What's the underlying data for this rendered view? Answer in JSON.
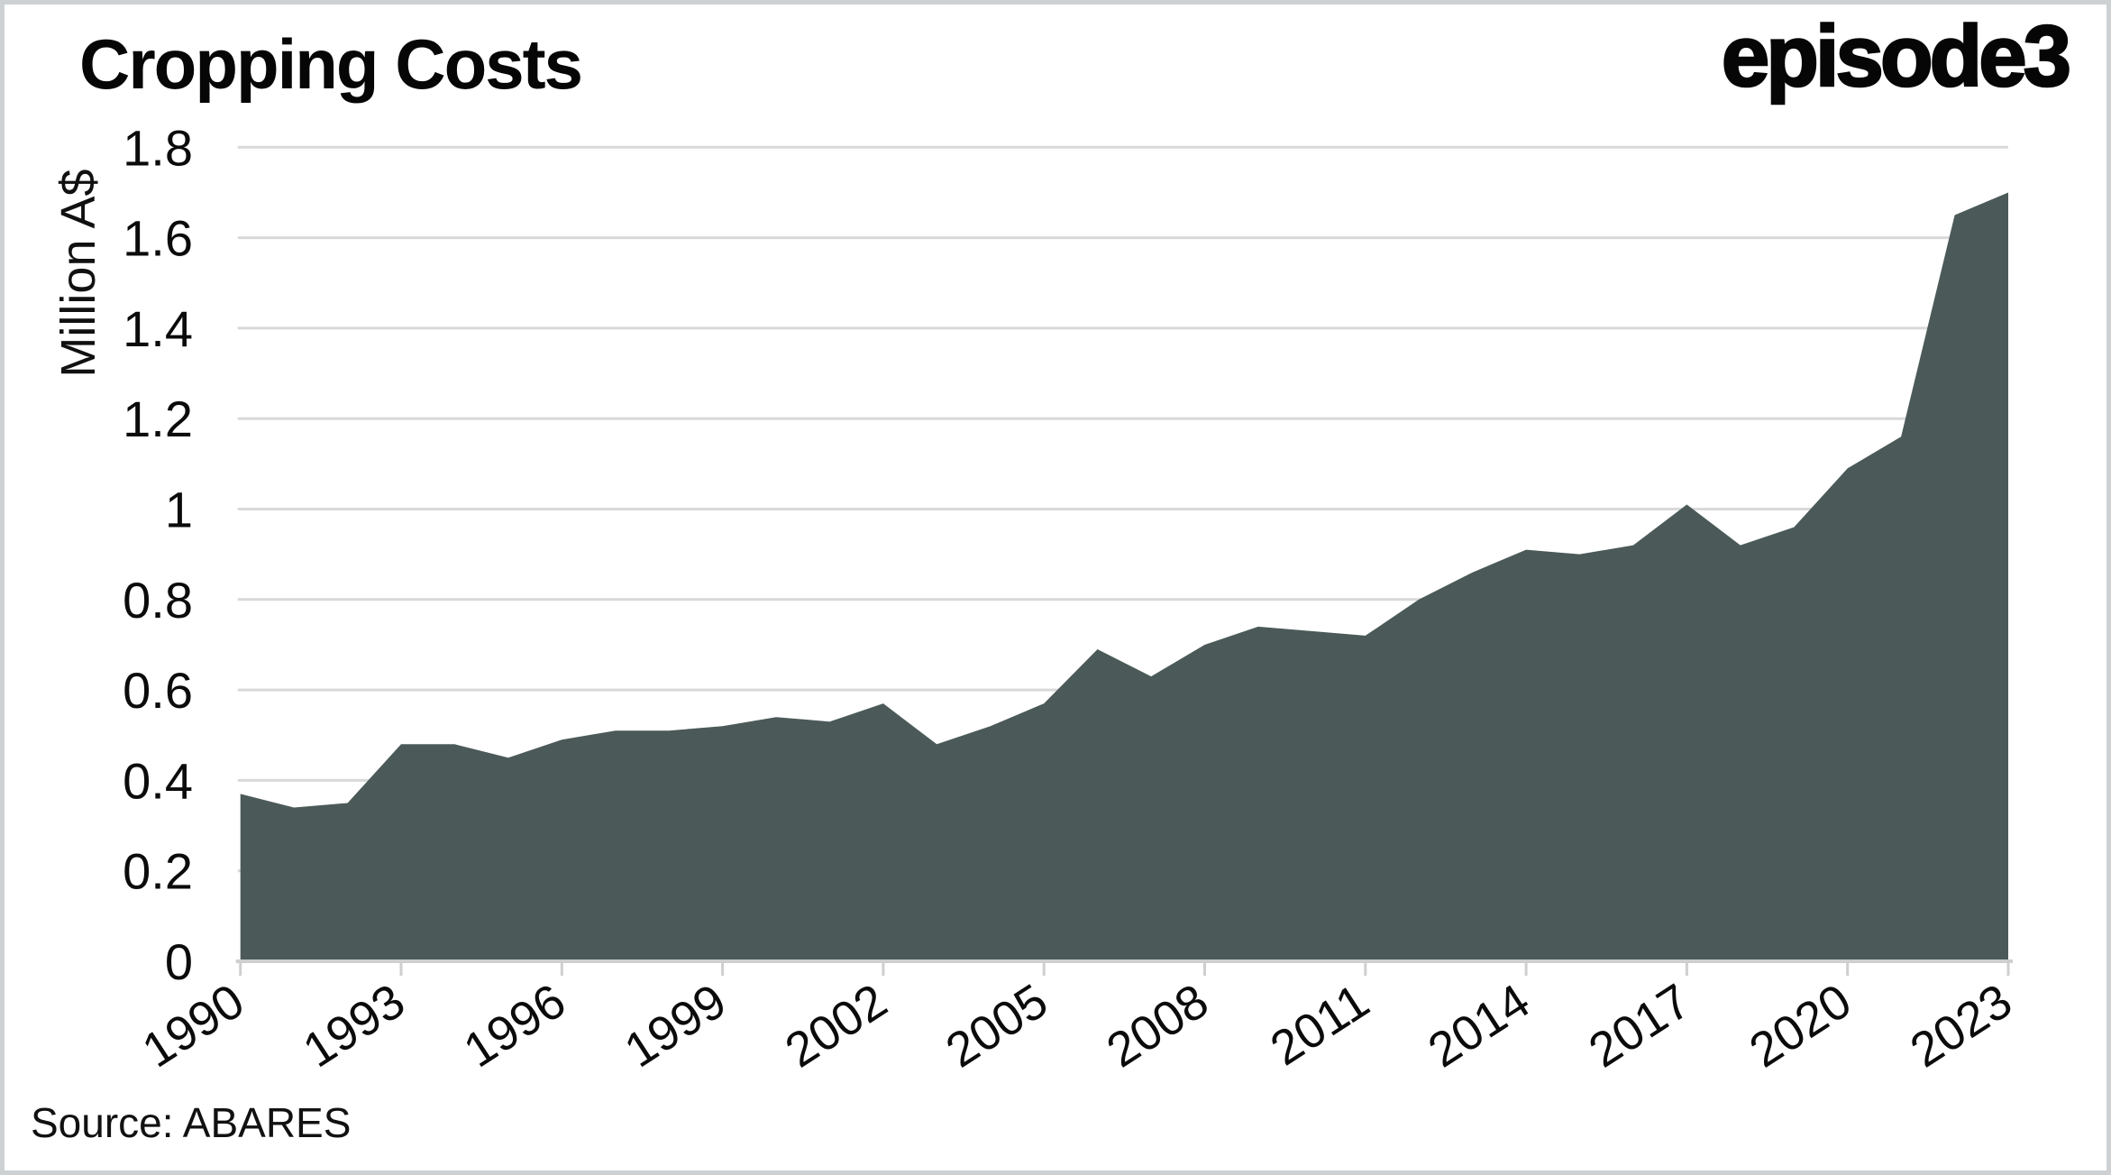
{
  "header": {
    "title": "Cropping Costs",
    "logo": "episode3"
  },
  "source": {
    "label": "Source: ABARES"
  },
  "chart_data": {
    "type": "area",
    "title": "Cropping Costs",
    "ylabel": "Million A$",
    "xlabel": "",
    "series_name": "Cropping costs",
    "years": [
      1990,
      1991,
      1992,
      1993,
      1994,
      1995,
      1996,
      1997,
      1998,
      1999,
      2000,
      2001,
      2002,
      2003,
      2004,
      2005,
      2006,
      2007,
      2008,
      2009,
      2010,
      2011,
      2012,
      2013,
      2014,
      2015,
      2016,
      2017,
      2018,
      2019,
      2020,
      2021,
      2022,
      2023
    ],
    "values": [
      0.37,
      0.34,
      0.35,
      0.48,
      0.48,
      0.45,
      0.49,
      0.51,
      0.51,
      0.52,
      0.54,
      0.53,
      0.57,
      0.48,
      0.52,
      0.57,
      0.69,
      0.63,
      0.7,
      0.74,
      0.73,
      0.72,
      0.8,
      0.86,
      0.91,
      0.9,
      0.92,
      1.01,
      0.92,
      0.96,
      1.09,
      1.16,
      1.65,
      1.7
    ],
    "ylim": [
      0,
      1.8
    ],
    "ytick_labels": [
      "0",
      "0.2",
      "0.4",
      "0.6",
      "0.8",
      "1",
      "1.2",
      "1.4",
      "1.6",
      "1.8"
    ],
    "xtick_years": [
      1990,
      1993,
      1996,
      1999,
      2002,
      2005,
      2008,
      2011,
      2014,
      2017,
      2020,
      2023
    ],
    "xtick_labels": [
      "1990",
      "1993",
      "1996",
      "1999",
      "2002",
      "2005",
      "2008",
      "2011",
      "2014",
      "2017",
      "2020",
      "2023"
    ],
    "grid": "horizontal",
    "legend": "none",
    "colors": {
      "area_fill": "#4b5a58",
      "gridline": "#d9d9d9",
      "axis_line": "#cfcfcf",
      "text": "#0b0b0b",
      "background": "#ffffff",
      "frame_border": "#cdd1d3"
    }
  }
}
